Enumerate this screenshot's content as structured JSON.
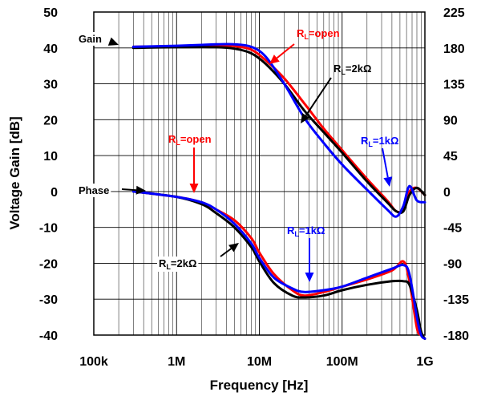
{
  "chart_data": {
    "type": "line",
    "title": "",
    "xlabel": "Frequency [Hz]",
    "ylabel": "Voltage Gain [dB]",
    "y2label": "",
    "xscale": "log",
    "xlim": [
      100000,
      1000000000
    ],
    "ylim": [
      -40,
      50
    ],
    "y2lim": [
      -180,
      225
    ],
    "grid": true,
    "x_ticks": [
      {
        "value": 100000,
        "label": "100k"
      },
      {
        "value": 1000000,
        "label": "1M"
      },
      {
        "value": 10000000,
        "label": "10M"
      },
      {
        "value": 100000000,
        "label": "100M"
      },
      {
        "value": 1000000000,
        "label": "1G"
      }
    ],
    "y_ticks": [
      {
        "value": 50,
        "label": "50"
      },
      {
        "value": 40,
        "label": "40"
      },
      {
        "value": 30,
        "label": "30"
      },
      {
        "value": 20,
        "label": "20"
      },
      {
        "value": 10,
        "label": "10"
      },
      {
        "value": 0,
        "label": "0"
      },
      {
        "value": -10,
        "label": "-10"
      },
      {
        "value": -20,
        "label": "-20"
      },
      {
        "value": -30,
        "label": "-30"
      },
      {
        "value": -40,
        "label": "-40"
      }
    ],
    "y2_ticks": [
      {
        "value": 225,
        "label": "225"
      },
      {
        "value": 180,
        "label": "180"
      },
      {
        "value": 135,
        "label": "135"
      },
      {
        "value": 90,
        "label": "90"
      },
      {
        "value": 45,
        "label": "45"
      },
      {
        "value": 0,
        "label": "0"
      },
      {
        "value": -45,
        "label": "-45"
      },
      {
        "value": -90,
        "label": "-90"
      },
      {
        "value": -135,
        "label": "-135"
      },
      {
        "value": -180,
        "label": "-180"
      }
    ],
    "series": [
      {
        "name": "RL=open",
        "kind": "gain",
        "color": "#ff0000",
        "x": [
          300000,
          1000000,
          3000000,
          5000000,
          8000000,
          12000000,
          20000000,
          35000000,
          60000000,
          100000000,
          200000000,
          350000000,
          450000000,
          550000000,
          650000000,
          800000000,
          1000000000
        ],
        "y": [
          40.3,
          40.5,
          40.7,
          40.5,
          39.5,
          36.5,
          31.5,
          24.5,
          17.5,
          11.5,
          3.5,
          -2.5,
          -5.5,
          -5,
          0,
          1,
          -1
        ]
      },
      {
        "name": "RL=2kΩ",
        "kind": "gain",
        "color": "#000000",
        "x": [
          300000,
          1000000,
          3000000,
          5000000,
          8000000,
          12000000,
          20000000,
          35000000,
          60000000,
          100000000,
          200000000,
          350000000,
          450000000,
          550000000,
          650000000,
          800000000,
          1000000000
        ],
        "y": [
          40,
          40.2,
          40.2,
          39.8,
          38.5,
          35.5,
          30,
          22.5,
          16.5,
          10.8,
          2.8,
          -3,
          -5.5,
          -5.5,
          -1,
          1,
          -1
        ]
      },
      {
        "name": "RL=1kΩ",
        "kind": "gain",
        "color": "#0000ff",
        "x": [
          300000,
          1000000,
          3000000,
          5000000,
          8000000,
          12000000,
          20000000,
          35000000,
          60000000,
          100000000,
          200000000,
          350000000,
          450000000,
          550000000,
          650000000,
          800000000,
          1000000000
        ],
        "y": [
          40.3,
          40.6,
          41,
          41,
          40.3,
          37.5,
          30,
          20.5,
          13.5,
          7.5,
          0.5,
          -5,
          -7,
          -4,
          1.5,
          -2.5,
          -3
        ]
      },
      {
        "name": "RL=open",
        "kind": "phase",
        "color": "#ff0000",
        "x": [
          300000,
          1000000,
          2000000,
          3000000,
          5000000,
          8000000,
          10000000,
          15000000,
          25000000,
          35000000,
          60000000,
          100000000,
          200000000,
          400000000,
          550000000,
          650000000,
          800000000,
          900000000,
          1000000000
        ],
        "y": [
          0,
          -1.5,
          -3,
          -5,
          -8,
          -13,
          -17,
          -23,
          -27.5,
          -29,
          -28,
          -26.5,
          -24.5,
          -22,
          -19.5,
          -25,
          -38,
          -40,
          -41
        ]
      },
      {
        "name": "RL=2kΩ",
        "kind": "phase",
        "color": "#000000",
        "x": [
          300000,
          1000000,
          2000000,
          3000000,
          5000000,
          8000000,
          10000000,
          15000000,
          25000000,
          35000000,
          60000000,
          100000000,
          200000000,
          400000000,
          550000000,
          650000000,
          800000000,
          900000000,
          1000000000
        ],
        "y": [
          0,
          -1.5,
          -3.5,
          -6,
          -10,
          -15.5,
          -19.5,
          -25.5,
          -29,
          -29.5,
          -29,
          -27.5,
          -26,
          -25,
          -25,
          -26,
          -33,
          -39,
          -41
        ]
      },
      {
        "name": "RL=1kΩ",
        "kind": "phase",
        "color": "#0000ff",
        "x": [
          300000,
          1000000,
          2000000,
          3000000,
          5000000,
          8000000,
          10000000,
          15000000,
          25000000,
          35000000,
          60000000,
          100000000,
          200000000,
          400000000,
          550000000,
          650000000,
          800000000,
          900000000,
          1000000000
        ],
        "y": [
          0,
          -1.5,
          -3,
          -5,
          -9,
          -14.5,
          -18.5,
          -24,
          -27,
          -28,
          -27.5,
          -26.5,
          -24,
          -21.5,
          -20.5,
          -23,
          -35,
          -40,
          -41
        ]
      }
    ],
    "annotations": [
      {
        "id": "gain",
        "main": "Gain",
        "sub": "",
        "post": "",
        "color": "#000000",
        "box": true
      },
      {
        "id": "phase",
        "main": "Phase",
        "sub": "",
        "post": "",
        "color": "#000000",
        "box": true
      },
      {
        "id": "rl-open-gain",
        "main": "R",
        "sub": "L",
        "post": "=open",
        "color": "#ff0000",
        "box": false
      },
      {
        "id": "rl-2k-gain",
        "main": "R",
        "sub": "L",
        "post": "=2kΩ",
        "color": "#000000",
        "box": false
      },
      {
        "id": "rl-1k-gain",
        "main": "R",
        "sub": "L",
        "post": "=1kΩ",
        "color": "#0000ff",
        "box": false
      },
      {
        "id": "rl-open-phase",
        "main": "R",
        "sub": "L",
        "post": "=open",
        "color": "#ff0000",
        "box": false
      },
      {
        "id": "rl-2k-phase",
        "main": "R",
        "sub": "L",
        "post": "=2kΩ",
        "color": "#000000",
        "box": true
      },
      {
        "id": "rl-1k-phase",
        "main": "R",
        "sub": "L",
        "post": "=1kΩ",
        "color": "#0000ff",
        "box": false
      }
    ]
  }
}
